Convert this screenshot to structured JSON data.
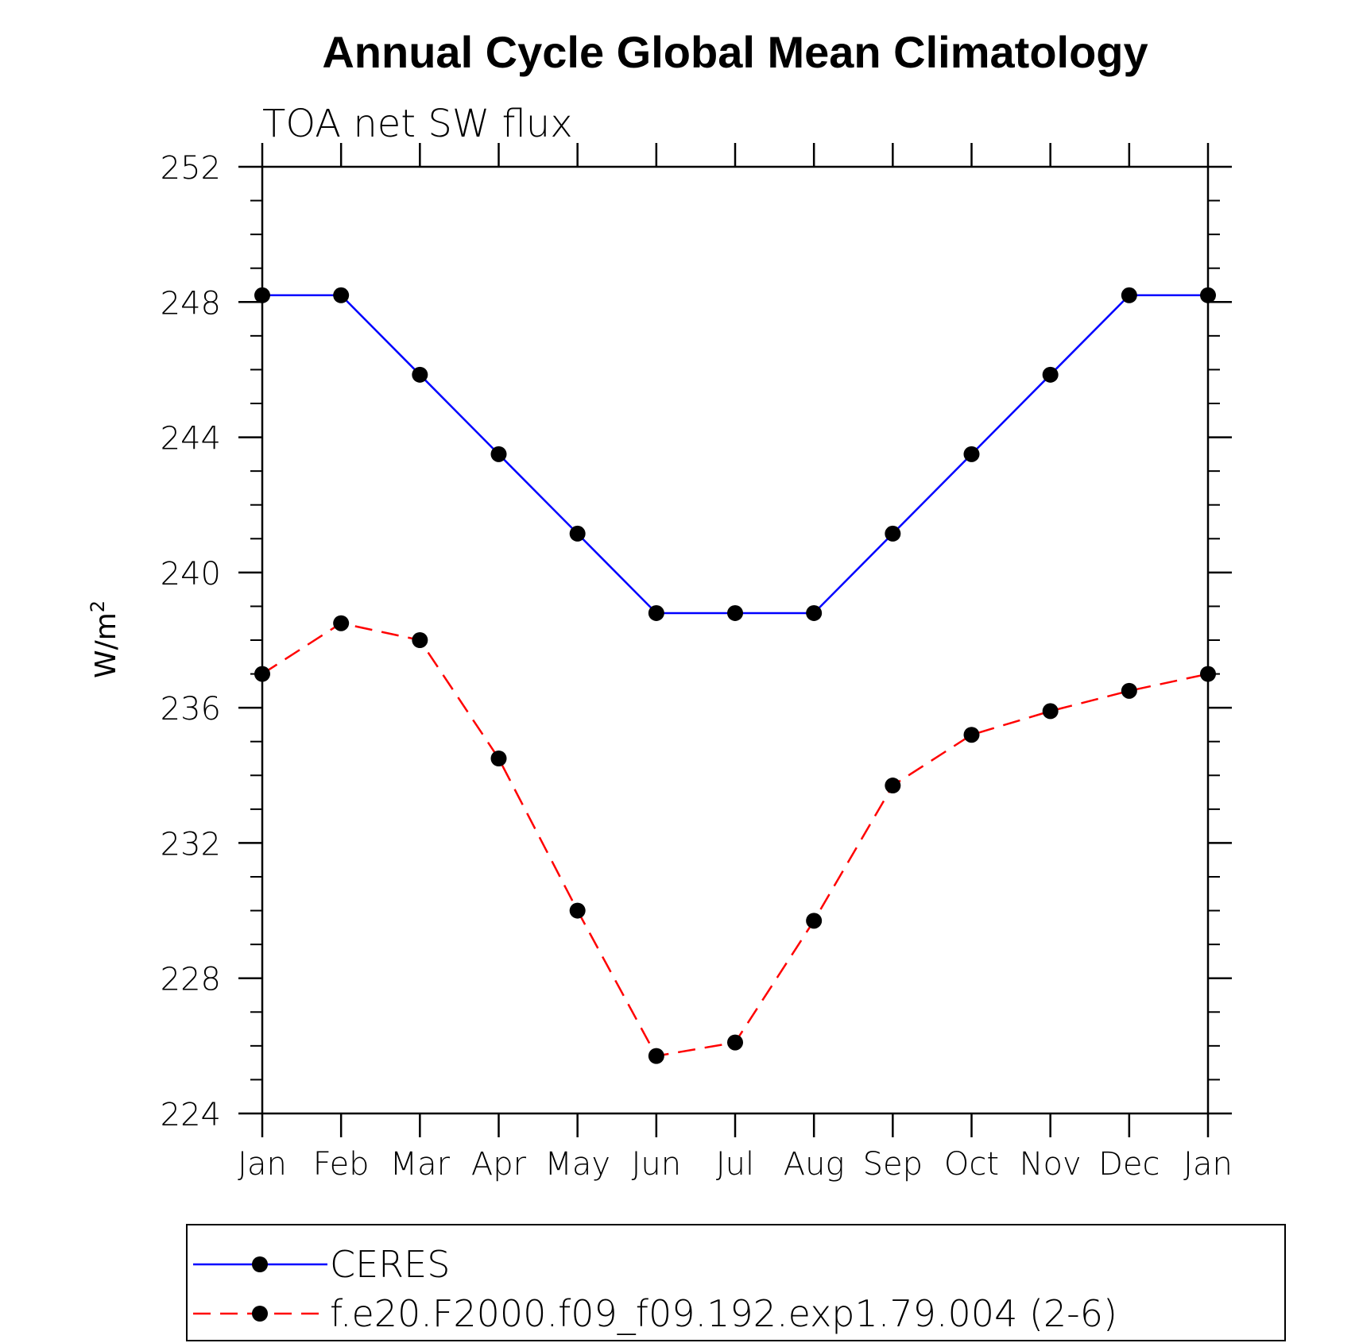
{
  "chart_data": {
    "type": "line",
    "title": "Annual Cycle Global Mean Climatology",
    "subtitle": "TOA net SW flux",
    "ylabel_main": "W/m",
    "ylabel_sup": "2",
    "xlabel": "",
    "categories": [
      "Jan",
      "Feb",
      "Mar",
      "Apr",
      "May",
      "Jun",
      "Jul",
      "Aug",
      "Sep",
      "Oct",
      "Nov",
      "Dec",
      "Jan"
    ],
    "ylim": [
      224,
      252
    ],
    "yticks": [
      "224",
      "228",
      "232",
      "236",
      "240",
      "244",
      "248",
      "252"
    ],
    "series": [
      {
        "name": "CERES",
        "color": "#0000ff",
        "dash": "solid",
        "values": [
          248.2,
          248.2,
          245.85,
          243.5,
          241.15,
          238.8,
          238.8,
          238.8,
          241.15,
          243.5,
          245.85,
          248.2,
          248.2
        ]
      },
      {
        "name": "f.e20.F2000.f09_f09.192.exp1.79.004 (2-6)",
        "color": "#ff0000",
        "dash": "dashed",
        "values": [
          237.0,
          238.5,
          238.0,
          234.5,
          230.0,
          225.7,
          226.1,
          229.7,
          233.7,
          235.2,
          235.9,
          236.5,
          237.0
        ]
      }
    ]
  }
}
